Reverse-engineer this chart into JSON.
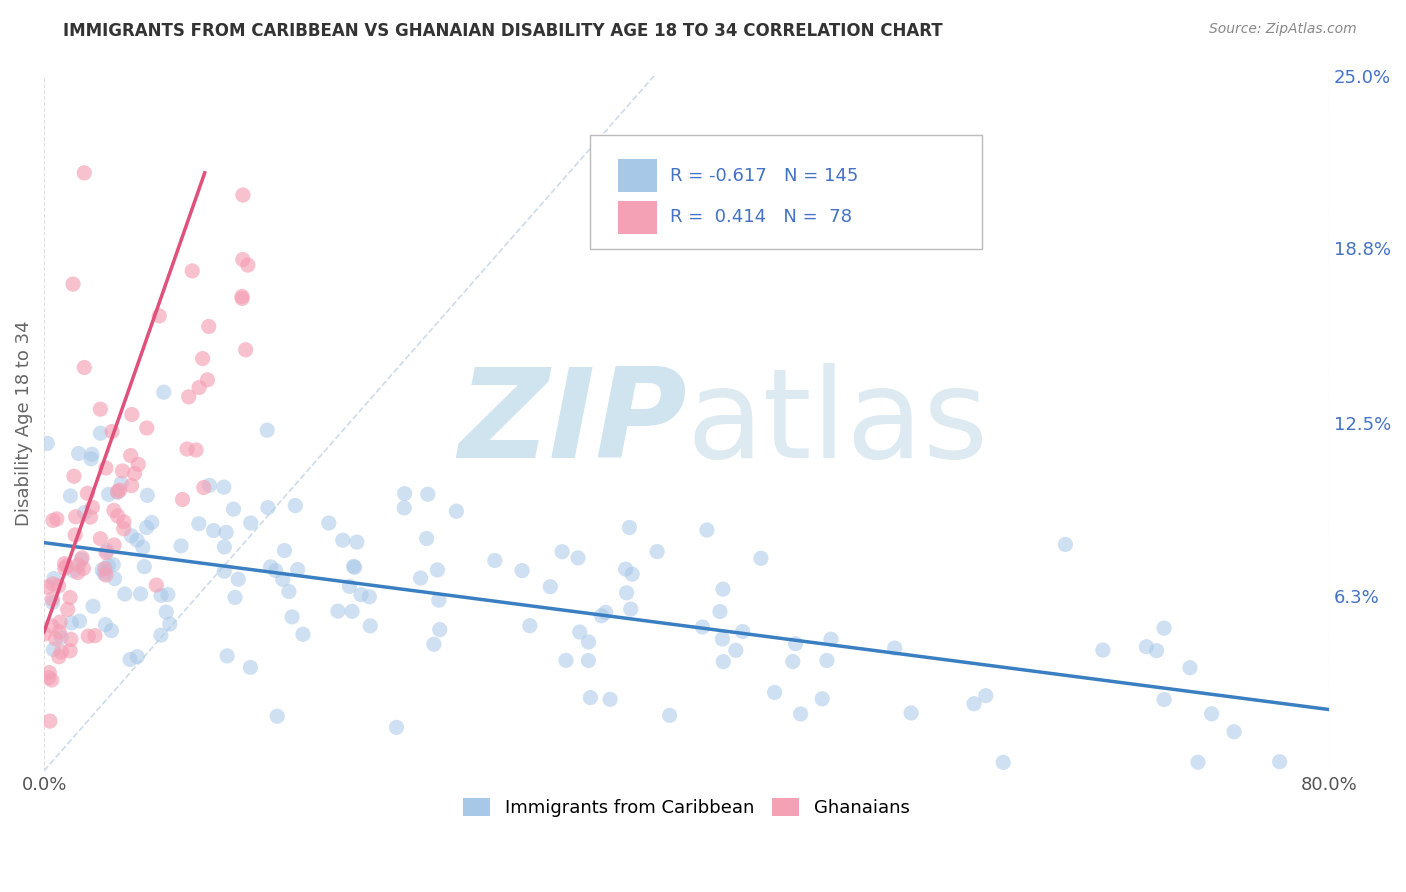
{
  "title": "IMMIGRANTS FROM CARIBBEAN VS GHANAIAN DISABILITY AGE 18 TO 34 CORRELATION CHART",
  "source": "Source: ZipAtlas.com",
  "ylabel": "Disability Age 18 to 34",
  "xlim": [
    0.0,
    0.8
  ],
  "ylim": [
    0.0,
    0.25
  ],
  "ytick_labels_right": [
    "25.0%",
    "18.8%",
    "12.5%",
    "6.3%"
  ],
  "ytick_values_right": [
    0.25,
    0.188,
    0.125,
    0.063
  ],
  "color_blue": "#a8c8e8",
  "color_pink": "#f4a0b5",
  "color_blue_line": "#3a7fc1",
  "color_pink_line": "#e0507a",
  "color_ghost_line": "#c8d8e8",
  "watermark_color": "#d0e4f0",
  "background_color": "#ffffff",
  "grid_color": "#dddddd",
  "title_color": "#333333",
  "axis_label_color": "#666666",
  "right_axis_label_color": "#4472c4",
  "legend_color": "#4472c4",
  "blue_line_x0": 0.0,
  "blue_line_x1": 0.8,
  "blue_line_y0": 0.082,
  "blue_line_y1": 0.022,
  "pink_line_x0": 0.0,
  "pink_line_x1": 0.1,
  "pink_line_y0": 0.05,
  "pink_line_y1": 0.215,
  "ghost_line_x0": 0.0,
  "ghost_line_x1": 0.38,
  "ghost_line_y0": 0.0,
  "ghost_line_y1": 0.25
}
